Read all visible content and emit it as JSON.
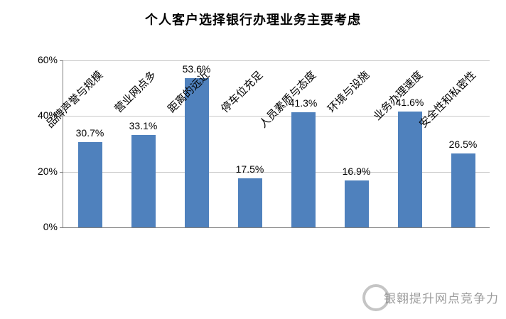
{
  "chart_data": {
    "type": "bar",
    "title": "个人客户选择银行办理业务主要考虑",
    "categories": [
      "品牌声誉与规模",
      "营业网点多",
      "距离的远近",
      "停车位充足",
      "人员素质与态度",
      "环境与设施",
      "业务办理速度",
      "安全性和私密性"
    ],
    "values": [
      30.7,
      33.1,
      53.6,
      17.5,
      41.3,
      16.9,
      41.6,
      26.5
    ],
    "value_labels": [
      "30.7%",
      "33.1%",
      "53.6%",
      "17.5%",
      "41.3%",
      "16.9%",
      "41.6%",
      "26.5%"
    ],
    "xlabel": "",
    "ylabel": "",
    "ylim": [
      0,
      60
    ],
    "yticks": [
      0,
      20,
      40,
      60
    ],
    "ytick_labels": [
      "0%",
      "20%",
      "40%",
      "60%"
    ],
    "bar_color": "#4F81BD",
    "grid": "horizontal",
    "legend": "none"
  },
  "watermark": {
    "text": "银翱提升网点竞争力"
  }
}
